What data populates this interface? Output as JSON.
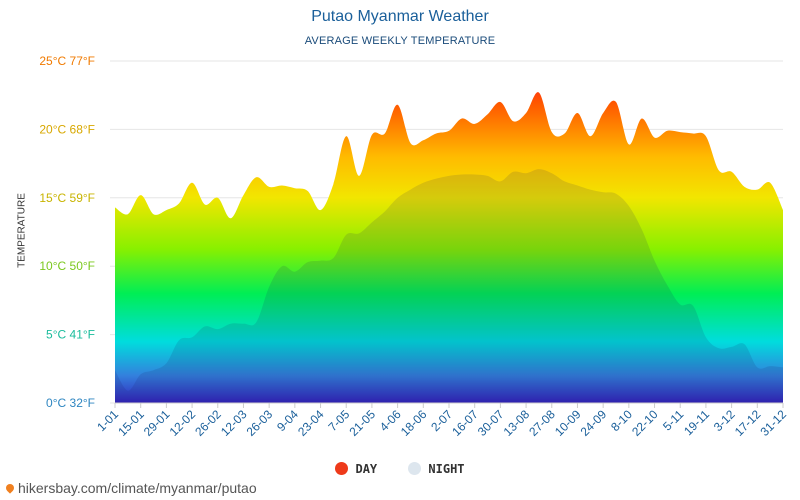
{
  "title": "Putao Myanmar Weather",
  "subtitle": "AVERAGE WEEKLY TEMPERATURE",
  "footer": "hikersbay.com/climate/myanmar/putao",
  "legend": {
    "day": "DAY",
    "night": "NIGHT"
  },
  "colors": {
    "day_dot": "#ee3a1a",
    "night_dot": "#dde6ee",
    "grid": "#e6e6e6"
  },
  "chart_data": {
    "type": "area",
    "ylabel": "TEMPERATURE",
    "ylim": [
      0,
      25
    ],
    "y_ticks": [
      {
        "value": 0,
        "label": "0°C 32°F",
        "color": "#2e86c1"
      },
      {
        "value": 5,
        "label": "5°C 41°F",
        "color": "#1abc9c"
      },
      {
        "value": 10,
        "label": "10°C 50°F",
        "color": "#7bc81e"
      },
      {
        "value": 15,
        "label": "15°C 59°F",
        "color": "#c8b400"
      },
      {
        "value": 20,
        "label": "20°C 68°F",
        "color": "#d8a800"
      },
      {
        "value": 25,
        "label": "25°C 77°F",
        "color": "#f07a00"
      }
    ],
    "x_tick_labels": [
      "1-01",
      "15-01",
      "29-01",
      "12-02",
      "26-02",
      "12-03",
      "26-03",
      "9-04",
      "23-04",
      "7-05",
      "21-05",
      "4-06",
      "18-06",
      "2-07",
      "16-07",
      "30-07",
      "13-08",
      "27-08",
      "10-09",
      "24-09",
      "8-10",
      "22-10",
      "5-11",
      "19-11",
      "3-12",
      "17-12",
      "31-12"
    ],
    "series": [
      {
        "name": "DAY",
        "values": [
          14.3,
          13.8,
          15.2,
          13.8,
          14.1,
          14.6,
          16.1,
          14.5,
          15.0,
          13.5,
          15.2,
          16.5,
          15.8,
          15.9,
          15.7,
          15.5,
          14.1,
          16.0,
          19.5,
          16.6,
          19.6,
          19.7,
          21.8,
          19.0,
          19.2,
          19.7,
          19.9,
          20.8,
          20.4,
          21.1,
          22.0,
          20.6,
          21.2,
          22.7,
          19.8,
          19.7,
          21.2,
          19.5,
          21.2,
          22.0,
          18.9,
          20.8,
          19.4,
          19.9,
          19.8,
          19.7,
          19.5,
          17.0,
          16.9,
          15.8,
          15.6,
          16.1,
          14.1
        ]
      },
      {
        "name": "NIGHT",
        "values": [
          2.4,
          0.9,
          2.1,
          2.4,
          2.9,
          4.6,
          4.8,
          5.6,
          5.4,
          5.8,
          5.8,
          5.9,
          8.5,
          10.0,
          9.6,
          10.3,
          10.4,
          10.6,
          12.3,
          12.4,
          13.2,
          14.0,
          15.0,
          15.6,
          16.1,
          16.4,
          16.6,
          16.7,
          16.7,
          16.6,
          16.2,
          16.9,
          16.8,
          17.1,
          16.8,
          16.2,
          15.9,
          15.6,
          15.4,
          15.3,
          14.4,
          12.7,
          10.4,
          8.6,
          7.2,
          7.1,
          4.8,
          4.0,
          4.1,
          4.3,
          2.6,
          2.7,
          2.6
        ]
      }
    ]
  }
}
